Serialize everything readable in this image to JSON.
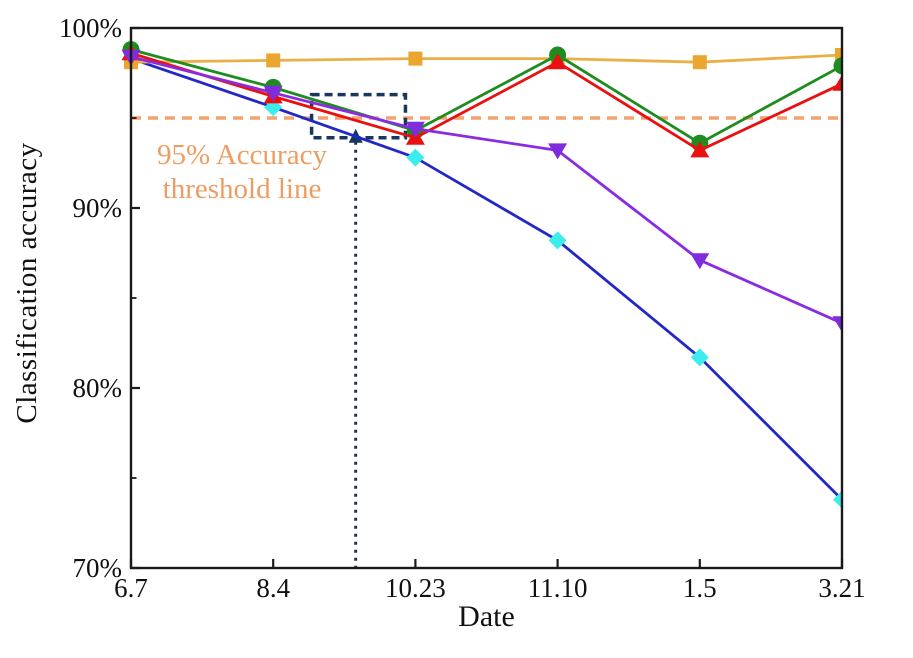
{
  "figure": {
    "background": "#ffffff"
  },
  "chart_data": {
    "type": "line",
    "title": "",
    "xlabel": "Date",
    "ylabel": "Classification accuracy",
    "categories": [
      "6.7",
      "8.4",
      "10.23",
      "11.10",
      "1.5",
      "3.21"
    ],
    "ylim": [
      70,
      100
    ],
    "y_major_ticks": [
      {
        "value": 100,
        "label": "100%"
      },
      {
        "value": 90,
        "label": "90%"
      },
      {
        "value": 80,
        "label": "80%"
      },
      {
        "value": 70,
        "label": "70%"
      }
    ],
    "y_minor_ticks": [
      95,
      85,
      75
    ],
    "grid": false,
    "legend_position": "none",
    "axis_color": "#1a1a1a",
    "series": [
      {
        "name": "cyan-diamond",
        "marker": "diamond",
        "line_color": "#2228C8",
        "marker_color": "#3DEDED",
        "values": [
          98.3,
          95.6,
          92.8,
          88.2,
          81.7,
          73.8
        ]
      },
      {
        "name": "gold-square",
        "marker": "square",
        "line_color": "#E9B04A",
        "marker_color": "#EAA62F",
        "values": [
          98.1,
          98.2,
          98.3,
          98.3,
          98.1,
          98.5
        ]
      },
      {
        "name": "green-circle",
        "marker": "circle",
        "line_color": "#1E8C1E",
        "marker_color": "#1E8C1E",
        "values": [
          98.8,
          96.7,
          94.3,
          98.5,
          93.6,
          97.9
        ]
      },
      {
        "name": "red-triangle-up",
        "marker": "triangle-up",
        "line_color": "#EA1010",
        "marker_color": "#EA1010",
        "values": [
          98.6,
          96.2,
          93.9,
          98.1,
          93.2,
          96.9
        ]
      },
      {
        "name": "purple-triangle-down",
        "marker": "triangle-down",
        "line_color": "#8A2BE2",
        "marker_color": "#7F2BDE",
        "values": [
          98.4,
          96.4,
          94.4,
          93.2,
          87.1,
          83.6
        ]
      }
    ],
    "threshold": {
      "value": 95,
      "line_color": "#F2A470",
      "text_color": "#EE9D62",
      "label_line1": "95% Accuracy",
      "label_line2": "threshold line"
    },
    "annotation": {
      "color": "#17375E",
      "box": {
        "x0_index": 1.27,
        "x1_index": 1.93,
        "y0": 93.9,
        "y1": 96.3
      },
      "arrow_x_index": 1.58
    }
  }
}
